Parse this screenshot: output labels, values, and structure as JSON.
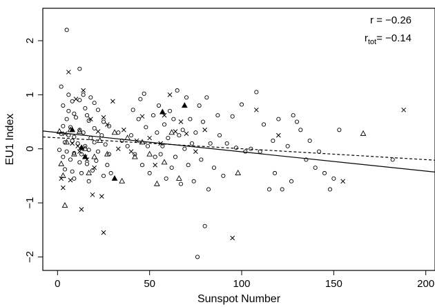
{
  "chart_data": {
    "type": "scatter",
    "title": "",
    "xlabel": "Sunspot Number",
    "ylabel": "EU1 Index",
    "xlim": [
      -8,
      205
    ],
    "ylim": [
      -2.25,
      2.6
    ],
    "x_ticks": [
      0,
      50,
      100,
      150,
      200
    ],
    "x_tick_labels": [
      "0",
      "50",
      "100",
      "150",
      "200"
    ],
    "y_ticks": [
      -2,
      -1,
      0,
      1,
      2
    ],
    "y_tick_labels": [
      "−2",
      "−1",
      "0",
      "1",
      "2"
    ],
    "grid": false,
    "annotations": {
      "r_label": "r = −0.26",
      "rtot_main": "r",
      "rtot_sub": "tot",
      "rtot_value": "= −0.14"
    },
    "lines": [
      {
        "style": "solid",
        "x": [
          -8,
          205
        ],
        "y": [
          0.33,
          -0.43
        ]
      },
      {
        "style": "dashed",
        "x": [
          -8,
          205
        ],
        "y": [
          0.22,
          -0.21
        ]
      }
    ],
    "series": [
      {
        "marker": "circle",
        "points": [
          [
            5,
            2.2
          ],
          [
            2,
            1.15
          ],
          [
            12,
            1.48
          ],
          [
            6,
            1.0
          ],
          [
            8,
            0.88
          ],
          [
            12,
            0.9
          ],
          [
            14,
            1.0
          ],
          [
            18,
            0.95
          ],
          [
            20,
            0.85
          ],
          [
            3,
            0.8
          ],
          [
            6,
            0.7
          ],
          [
            9,
            0.65
          ],
          [
            15,
            0.75
          ],
          [
            16,
            0.62
          ],
          [
            22,
            0.72
          ],
          [
            5,
            0.55
          ],
          [
            10,
            0.58
          ],
          [
            17,
            0.52
          ],
          [
            25,
            0.5
          ],
          [
            3,
            0.42
          ],
          [
            7,
            0.4
          ],
          [
            12,
            0.35
          ],
          [
            20,
            0.38
          ],
          [
            28,
            0.42
          ],
          [
            2,
            0.28
          ],
          [
            6,
            0.25
          ],
          [
            9,
            0.22
          ],
          [
            14,
            0.3
          ],
          [
            18,
            0.2
          ],
          [
            24,
            0.25
          ],
          [
            4,
            0.12
          ],
          [
            8,
            0.15
          ],
          [
            11,
            0.1
          ],
          [
            15,
            0.05
          ],
          [
            20,
            0.12
          ],
          [
            26,
            0.08
          ],
          [
            1,
            -0.02
          ],
          [
            5,
            -0.05
          ],
          [
            9,
            -0.08
          ],
          [
            13,
            -0.1
          ],
          [
            17,
            -0.02
          ],
          [
            22,
            -0.05
          ],
          [
            28,
            -0.1
          ],
          [
            3,
            -0.15
          ],
          [
            7,
            -0.2
          ],
          [
            12,
            -0.25
          ],
          [
            16,
            -0.28
          ],
          [
            21,
            -0.22
          ],
          [
            27,
            -0.3
          ],
          [
            4,
            -0.38
          ],
          [
            8,
            -0.42
          ],
          [
            13,
            -0.45
          ],
          [
            19,
            -0.4
          ],
          [
            25,
            -0.5
          ],
          [
            9,
            -0.55
          ],
          [
            17,
            -0.6
          ],
          [
            29,
            -0.45
          ],
          [
            33,
            0.3
          ],
          [
            35,
            0.15
          ],
          [
            38,
            0.05
          ],
          [
            40,
            0.25
          ],
          [
            41,
            0.72
          ],
          [
            42,
            -0.1
          ],
          [
            44,
            0.55
          ],
          [
            45,
            0.92
          ],
          [
            46,
            -0.3
          ],
          [
            47,
            1.02
          ],
          [
            48,
            0.4
          ],
          [
            49,
            0.05
          ],
          [
            50,
            -0.45
          ],
          [
            52,
            0.62
          ],
          [
            53,
            -0.15
          ],
          [
            54,
            0.3
          ],
          [
            55,
            0.8
          ],
          [
            56,
            -0.1
          ],
          [
            57,
            0.05
          ],
          [
            58,
            0.45
          ],
          [
            59,
            -0.55
          ],
          [
            60,
            0.2
          ],
          [
            61,
            0.7
          ],
          [
            62,
            -0.35
          ],
          [
            63,
            0.55
          ],
          [
            64,
            -0.15
          ],
          [
            65,
            1.08
          ],
          [
            66,
            0.25
          ],
          [
            67,
            -0.65
          ],
          [
            68,
            0.35
          ],
          [
            69,
            0.0
          ],
          [
            70,
            0.95
          ],
          [
            71,
            -0.3
          ],
          [
            72,
            0.55
          ],
          [
            73,
            0.1
          ],
          [
            74,
            -0.6
          ],
          [
            75,
            0.3
          ],
          [
            76,
            -2.0
          ],
          [
            77,
            0.8
          ],
          [
            78,
            -0.2
          ],
          [
            79,
            0.5
          ],
          [
            80,
            -1.43
          ],
          [
            81,
            0.95
          ],
          [
            82,
            -0.75
          ],
          [
            83,
            0.1
          ],
          [
            85,
            -0.35
          ],
          [
            87,
            0.62
          ],
          [
            88,
            0.25
          ],
          [
            90,
            -0.5
          ],
          [
            92,
            0.1
          ],
          [
            95,
            0.6
          ],
          [
            97,
            0.02
          ],
          [
            100,
            0.82
          ],
          [
            102,
            -0.05
          ],
          [
            105,
            0.0
          ],
          [
            108,
            1.05
          ],
          [
            110,
            -0.05
          ],
          [
            112,
            0.45
          ],
          [
            115,
            -0.75
          ],
          [
            117,
            0.15
          ],
          [
            118,
            -0.45
          ],
          [
            120,
            0.55
          ],
          [
            122,
            -0.75
          ],
          [
            125,
            0.05
          ],
          [
            127,
            -0.6
          ],
          [
            128,
            0.62
          ],
          [
            130,
            0.5
          ],
          [
            132,
            0.35
          ],
          [
            135,
            -0.2
          ],
          [
            137,
            0.15
          ],
          [
            140,
            -0.35
          ],
          [
            142,
            -0.05
          ],
          [
            145,
            -0.45
          ],
          [
            148,
            -0.75
          ],
          [
            150,
            -0.55
          ],
          [
            153,
            0.35
          ],
          [
            182,
            -0.2
          ]
        ]
      },
      {
        "marker": "cross",
        "points": [
          [
            6,
            1.42
          ],
          [
            10,
            0.92
          ],
          [
            14,
            1.08
          ],
          [
            18,
            0.55
          ],
          [
            22,
            0.32
          ],
          [
            4,
            0.28
          ],
          [
            8,
            0.1
          ],
          [
            12,
            -0.05
          ],
          [
            16,
            -0.2
          ],
          [
            20,
            -0.35
          ],
          [
            25,
            0.58
          ],
          [
            3,
            -0.72
          ],
          [
            7,
            -0.58
          ],
          [
            11,
            0.05
          ],
          [
            15,
            -0.15
          ],
          [
            19,
            -0.85
          ],
          [
            24,
            -0.88
          ],
          [
            13,
            -1.12
          ],
          [
            27,
            0.45
          ],
          [
            30,
            0.88
          ],
          [
            33,
            0.0
          ],
          [
            36,
            0.35
          ],
          [
            40,
            -0.05
          ],
          [
            43,
            0.15
          ],
          [
            46,
            0.6
          ],
          [
            50,
            0.2
          ],
          [
            53,
            -0.3
          ],
          [
            56,
            0.1
          ],
          [
            58,
            0.62
          ],
          [
            61,
            1.0
          ],
          [
            64,
            0.32
          ],
          [
            67,
            0.5
          ],
          [
            70,
            0.28
          ],
          [
            75,
            -0.05
          ],
          [
            80,
            0.35
          ],
          [
            95,
            -1.65
          ],
          [
            108,
            0.72
          ],
          [
            120,
            0.25
          ],
          [
            155,
            -0.6
          ],
          [
            188,
            0.72
          ],
          [
            25,
            -1.55
          ],
          [
            2,
            -0.55
          ]
        ]
      },
      {
        "marker": "triangle-open",
        "points": [
          [
            1,
            0.32
          ],
          [
            2,
            -0.28
          ],
          [
            3,
            -0.5
          ],
          [
            4,
            -1.05
          ],
          [
            5,
            0.12
          ],
          [
            7,
            0.35
          ],
          [
            9,
            -0.1
          ],
          [
            12,
            0.32
          ],
          [
            15,
            0.0
          ],
          [
            17,
            -0.45
          ],
          [
            20,
            -0.15
          ],
          [
            23,
            0.15
          ],
          [
            27,
            -0.1
          ],
          [
            31,
            0.3
          ],
          [
            35,
            -0.6
          ],
          [
            38,
            0.2
          ],
          [
            42,
            -0.15
          ],
          [
            46,
            0.12
          ],
          [
            50,
            -0.1
          ],
          [
            54,
            -0.65
          ],
          [
            58,
            -0.25
          ],
          [
            62,
            0.3
          ],
          [
            66,
            -0.55
          ],
          [
            98,
            -0.45
          ],
          [
            166,
            0.28
          ]
        ]
      },
      {
        "marker": "triangle-filled",
        "points": [
          [
            8,
            0.35
          ],
          [
            13,
            0.02
          ],
          [
            15,
            -0.15
          ],
          [
            31,
            -0.55
          ],
          [
            57,
            0.68
          ],
          [
            69,
            0.8
          ]
        ]
      }
    ]
  }
}
